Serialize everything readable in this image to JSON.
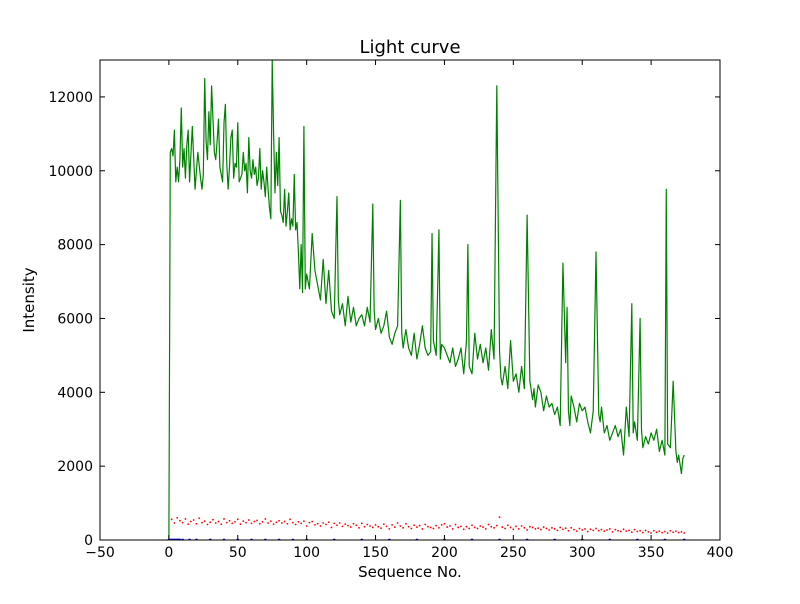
{
  "chart_data": {
    "type": "line",
    "title": "Light curve",
    "xlabel": "Sequence No.",
    "ylabel": "Intensity",
    "xlim": [
      -50,
      400
    ],
    "ylim": [
      0,
      13000
    ],
    "xticks": [
      -50,
      0,
      50,
      100,
      150,
      200,
      250,
      300,
      350,
      400
    ],
    "yticks": [
      0,
      2000,
      4000,
      6000,
      8000,
      10000,
      12000
    ],
    "xtick_labels": [
      "−50",
      "0",
      "50",
      "100",
      "150",
      "200",
      "250",
      "300",
      "350",
      "400"
    ],
    "ytick_labels": [
      "0",
      "2000",
      "4000",
      "6000",
      "8000",
      "10000",
      "12000"
    ],
    "grid": false,
    "legend": "none",
    "colors": {
      "green": "#008000",
      "red": "#ff0000",
      "blue": "#0000ff"
    },
    "series": [
      {
        "style": "solid-line",
        "color": "#008000",
        "x": [
          0,
          1,
          2,
          3,
          4,
          5,
          6,
          7,
          8,
          9,
          10,
          11,
          12,
          13,
          14,
          15,
          17,
          19,
          21,
          23,
          24,
          25,
          26,
          27,
          28,
          29,
          30,
          31,
          32,
          33,
          34,
          35,
          36,
          37,
          38,
          39,
          40,
          41,
          42,
          43,
          44,
          45,
          46,
          47,
          48,
          49,
          50,
          51,
          52,
          53,
          54,
          55,
          56,
          57,
          58,
          59,
          60,
          61,
          62,
          63,
          64,
          65,
          66,
          67,
          68,
          69,
          70,
          71,
          72,
          73,
          74,
          75,
          76,
          77,
          78,
          79,
          80,
          81,
          82,
          83,
          84,
          85,
          86,
          87,
          88,
          89,
          90,
          91,
          92,
          93,
          94,
          95,
          96,
          97,
          98,
          99,
          100,
          102,
          104,
          106,
          108,
          110,
          112,
          114,
          116,
          118,
          120,
          122,
          123,
          124,
          126,
          128,
          130,
          132,
          134,
          136,
          138,
          140,
          142,
          144,
          146,
          148,
          149,
          150,
          152,
          154,
          156,
          158,
          160,
          162,
          164,
          166,
          168,
          169,
          170,
          172,
          174,
          176,
          178,
          180,
          182,
          184,
          186,
          188,
          190,
          191,
          192,
          194,
          196,
          197,
          198,
          200,
          202,
          204,
          206,
          208,
          210,
          212,
          214,
          216,
          217,
          218,
          220,
          222,
          224,
          226,
          228,
          230,
          232,
          234,
          236,
          238,
          240,
          241,
          242,
          244,
          246,
          248,
          250,
          252,
          254,
          256,
          258,
          260,
          262,
          264,
          265,
          266,
          268,
          270,
          272,
          274,
          276,
          278,
          280,
          282,
          284,
          286,
          288,
          289,
          290,
          291,
          292,
          294,
          296,
          298,
          300,
          302,
          304,
          306,
          308,
          310,
          312,
          313,
          314,
          316,
          318,
          320,
          322,
          324,
          326,
          328,
          330,
          332,
          334,
          336,
          337,
          338,
          340,
          342,
          343,
          344,
          346,
          348,
          350,
          352,
          354,
          356,
          358,
          360,
          361,
          362,
          364,
          366,
          368,
          369,
          370,
          372,
          373,
          374
        ],
        "y": [
          0,
          10500,
          10600,
          10400,
          11100,
          9700,
          10100,
          9700,
          10300,
          11700,
          10100,
          10600,
          9800,
          10700,
          11100,
          9700,
          11200,
          9500,
          10500,
          9800,
          9500,
          9900,
          12500,
          10800,
          10300,
          11600,
          10700,
          12300,
          11400,
          10500,
          10300,
          10800,
          11400,
          10100,
          9900,
          9700,
          11300,
          11800,
          10200,
          9500,
          10100,
          10900,
          11100,
          9800,
          10200,
          10100,
          11300,
          9700,
          9800,
          9900,
          10500,
          10000,
          10200,
          9400,
          10900,
          10000,
          9800,
          10300,
          9900,
          10100,
          9600,
          9800,
          10600,
          9500,
          10000,
          9700,
          9300,
          10100,
          9500,
          9000,
          8700,
          13000,
          11000,
          9400,
          10500,
          9600,
          10900,
          8900,
          8800,
          8600,
          9500,
          8500,
          8900,
          9400,
          8400,
          8700,
          8500,
          9900,
          8400,
          8600,
          7800,
          6800,
          8000,
          6700,
          11200,
          6800,
          7200,
          6800,
          8300,
          7300,
          6900,
          6500,
          7600,
          6400,
          7300,
          6200,
          6000,
          9300,
          6500,
          6100,
          6400,
          5800,
          6600,
          5900,
          6300,
          5800,
          6000,
          6100,
          5800,
          6300,
          5900,
          9100,
          6200,
          5700,
          6000,
          5600,
          5800,
          6200,
          5500,
          5300,
          5600,
          5800,
          9200,
          5600,
          5200,
          5700,
          5200,
          5000,
          5600,
          4900,
          5300,
          5800,
          5200,
          5000,
          5100,
          8300,
          5400,
          5000,
          8400,
          4900,
          5300,
          5200,
          5000,
          4800,
          5200,
          4700,
          4900,
          5200,
          4500,
          5400,
          8000,
          4700,
          4500,
          5600,
          4900,
          5300,
          4800,
          5200,
          4600,
          5700,
          4900,
          12300,
          5100,
          4400,
          4200,
          4700,
          4100,
          5400,
          4300,
          4500,
          4000,
          4700,
          4100,
          8800,
          4300,
          3800,
          4100,
          3600,
          4200,
          4000,
          3500,
          3900,
          3600,
          3700,
          3400,
          3600,
          3100,
          7500,
          4800,
          6300,
          3500,
          3100,
          3900,
          3600,
          3200,
          3700,
          3500,
          3600,
          3200,
          2900,
          3500,
          7800,
          3400,
          3200,
          3600,
          2900,
          3100,
          2700,
          2900,
          3100,
          2800,
          3000,
          2300,
          3600,
          2800,
          6400,
          2900,
          3200,
          2700,
          6000,
          3000,
          2500,
          2800,
          2600,
          2900,
          2700,
          3000,
          2400,
          2700,
          2300,
          9500,
          2600,
          2500,
          4300,
          2400,
          2100,
          2300,
          1800,
          2200,
          2300
        ]
      },
      {
        "style": "dotted-markers",
        "color": "#ff0000",
        "x": [
          0,
          2,
          4,
          6,
          8,
          10,
          12,
          14,
          16,
          18,
          20,
          22,
          24,
          26,
          28,
          30,
          32,
          34,
          36,
          38,
          40,
          42,
          44,
          46,
          48,
          50,
          52,
          54,
          56,
          58,
          60,
          62,
          64,
          66,
          68,
          70,
          72,
          74,
          76,
          78,
          80,
          82,
          84,
          86,
          88,
          90,
          92,
          94,
          96,
          98,
          100,
          102,
          104,
          106,
          108,
          110,
          112,
          114,
          116,
          118,
          120,
          122,
          124,
          126,
          128,
          130,
          132,
          134,
          136,
          138,
          140,
          142,
          144,
          146,
          148,
          150,
          152,
          154,
          156,
          158,
          160,
          162,
          164,
          166,
          168,
          170,
          172,
          174,
          176,
          178,
          180,
          182,
          184,
          186,
          188,
          190,
          192,
          194,
          196,
          198,
          200,
          202,
          204,
          206,
          208,
          210,
          212,
          214,
          216,
          218,
          220,
          222,
          224,
          226,
          228,
          230,
          232,
          234,
          236,
          238,
          240,
          242,
          244,
          246,
          248,
          250,
          252,
          254,
          256,
          258,
          260,
          262,
          264,
          266,
          268,
          270,
          272,
          274,
          276,
          278,
          280,
          282,
          284,
          286,
          288,
          290,
          292,
          294,
          296,
          298,
          300,
          302,
          304,
          306,
          308,
          310,
          312,
          314,
          316,
          318,
          320,
          322,
          324,
          326,
          328,
          330,
          332,
          334,
          336,
          338,
          340,
          342,
          344,
          346,
          348,
          350,
          352,
          354,
          356,
          358,
          360,
          362,
          364,
          366,
          368,
          370,
          372,
          374
        ],
        "y": [
          0,
          560,
          460,
          600,
          520,
          470,
          570,
          430,
          500,
          540,
          440,
          590,
          470,
          510,
          420,
          480,
          550,
          460,
          500,
          430,
          570,
          470,
          520,
          450,
          490,
          560,
          430,
          510,
          470,
          540,
          450,
          500,
          530,
          440,
          490,
          570,
          460,
          510,
          430,
          480,
          520,
          460,
          500,
          440,
          560,
          470,
          420,
          490,
          450,
          510,
          380,
          470,
          500,
          410,
          440,
          380,
          460,
          420,
          480,
          340,
          450,
          400,
          460,
          370,
          430,
          390,
          350,
          440,
          400,
          330,
          450,
          360,
          420,
          380,
          340,
          410,
          360,
          320,
          430,
          370,
          300,
          410,
          350,
          460,
          380,
          330,
          440,
          360,
          310,
          400,
          350,
          390,
          300,
          420,
          360,
          340,
          310,
          390,
          330,
          410,
          440,
          350,
          380,
          300,
          420,
          340,
          370,
          290,
          360,
          310,
          400,
          340,
          310,
          380,
          350,
          300,
          420,
          360,
          330,
          390,
          620,
          350,
          310,
          400,
          340,
          290,
          370,
          300,
          380,
          330,
          270,
          360,
          340,
          300,
          320,
          280,
          350,
          310,
          270,
          330,
          300,
          260,
          340,
          290,
          320,
          250,
          330,
          280,
          240,
          310,
          270,
          300,
          230,
          290,
          260,
          310,
          250,
          280,
          240,
          270,
          300,
          220,
          280,
          250,
          230,
          290,
          240,
          260,
          210,
          280,
          230,
          250,
          200,
          260,
          220,
          190,
          250,
          210,
          240,
          200,
          230,
          190,
          250,
          210,
          240,
          200,
          220,
          190
        ]
      },
      {
        "style": "dotted-markers",
        "color": "#0000ff",
        "x": [
          0,
          1,
          2,
          3,
          4,
          5,
          6,
          7,
          8,
          10,
          15,
          20,
          30,
          40,
          50,
          60,
          70,
          80,
          90,
          100,
          120,
          140,
          160,
          180,
          200,
          220,
          240,
          260,
          280,
          300,
          320,
          340,
          360,
          374
        ],
        "y": [
          0,
          0,
          0,
          0,
          0,
          0,
          0,
          0,
          0,
          0,
          0,
          0,
          0,
          0,
          0,
          0,
          0,
          0,
          0,
          0,
          0,
          0,
          0,
          0,
          0,
          0,
          0,
          0,
          0,
          0,
          0,
          0,
          0,
          0
        ]
      }
    ]
  }
}
